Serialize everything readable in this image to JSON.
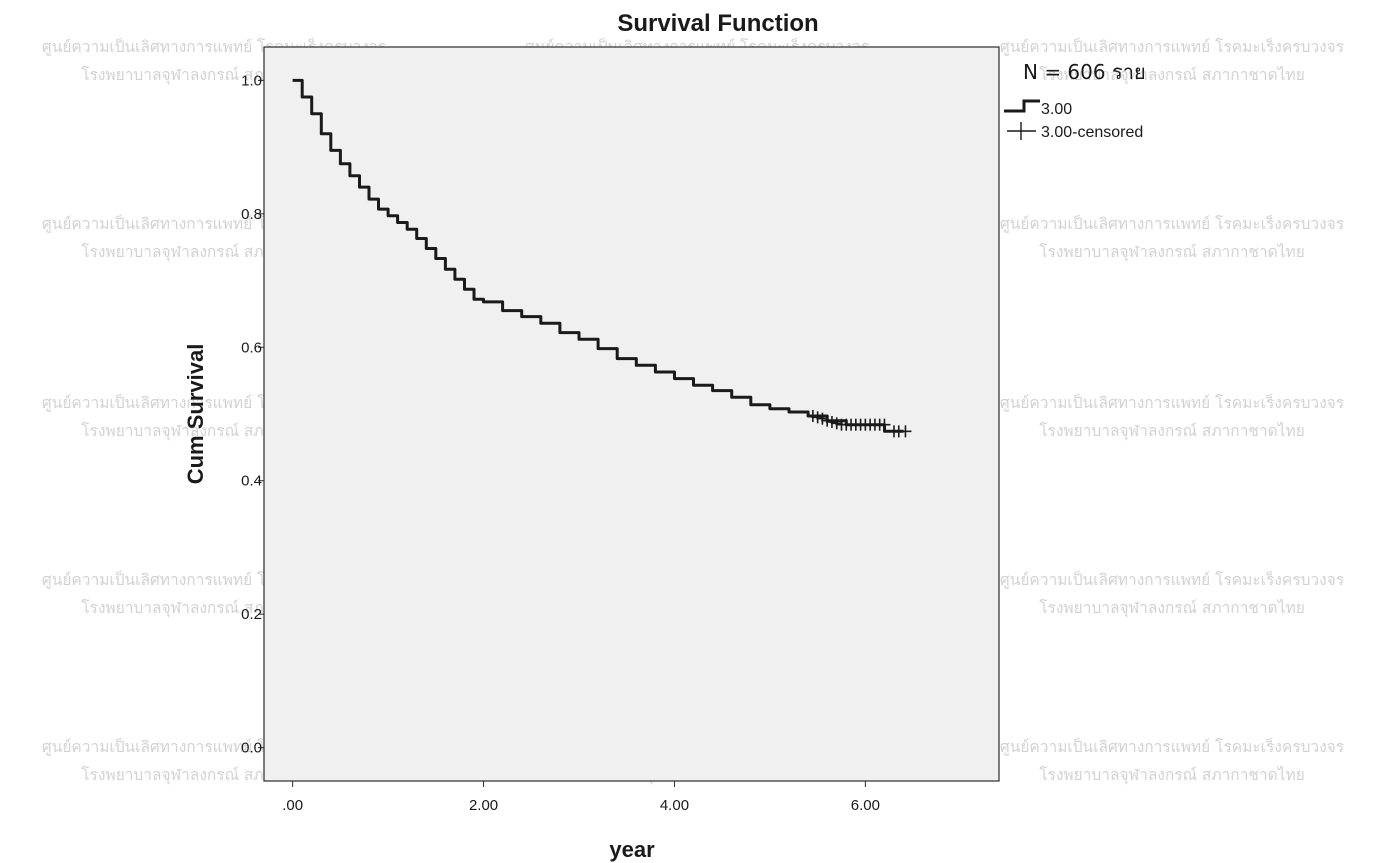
{
  "chart_data": {
    "type": "line",
    "title": "Survival Function",
    "xlabel": "year",
    "ylabel": "Cum Survival",
    "xlim": [
      -0.3,
      7.4
    ],
    "ylim": [
      -0.05,
      1.05
    ],
    "x_ticks": [
      0,
      2,
      4,
      6
    ],
    "x_tick_labels": [
      ".00",
      "2.00",
      "4.00",
      "6.00"
    ],
    "y_ticks": [
      0.0,
      0.2,
      0.4,
      0.6,
      0.8,
      1.0
    ],
    "y_tick_labels": [
      "0.0",
      "0.2",
      "0.4",
      "0.6",
      "0.8",
      "1.0"
    ],
    "grid": false,
    "legend_position": "right",
    "annotation": "N = 606 ราย",
    "series": [
      {
        "name": "3.00",
        "step": true,
        "x": [
          0.0,
          0.1,
          0.2,
          0.3,
          0.4,
          0.5,
          0.6,
          0.7,
          0.8,
          0.9,
          1.0,
          1.1,
          1.2,
          1.3,
          1.4,
          1.5,
          1.6,
          1.7,
          1.8,
          1.9,
          2.0,
          2.2,
          2.4,
          2.6,
          2.8,
          3.0,
          3.2,
          3.4,
          3.6,
          3.8,
          4.0,
          4.2,
          4.4,
          4.6,
          4.8,
          5.0,
          5.2,
          5.4,
          5.6,
          5.8,
          6.0,
          6.1,
          6.2,
          6.4
        ],
        "y": [
          1.0,
          0.975,
          0.95,
          0.92,
          0.895,
          0.875,
          0.857,
          0.84,
          0.822,
          0.807,
          0.797,
          0.787,
          0.777,
          0.763,
          0.748,
          0.733,
          0.717,
          0.702,
          0.687,
          0.672,
          0.668,
          0.655,
          0.646,
          0.636,
          0.622,
          0.612,
          0.598,
          0.583,
          0.573,
          0.563,
          0.553,
          0.543,
          0.535,
          0.525,
          0.514,
          0.508,
          0.503,
          0.497,
          0.49,
          0.484,
          0.484,
          0.484,
          0.474,
          0.474
        ]
      },
      {
        "name": "3.00-censored",
        "marker": "+",
        "x": [
          5.45,
          5.5,
          5.55,
          5.6,
          5.65,
          5.7,
          5.75,
          5.8,
          5.85,
          5.9,
          5.95,
          6.0,
          6.05,
          6.1,
          6.15,
          6.2,
          6.3,
          6.35,
          6.42
        ],
        "y": [
          0.497,
          0.495,
          0.493,
          0.49,
          0.488,
          0.486,
          0.484,
          0.484,
          0.484,
          0.484,
          0.484,
          0.484,
          0.484,
          0.484,
          0.484,
          0.484,
          0.474,
          0.474,
          0.474
        ]
      }
    ],
    "colors": {
      "plot_background": "#f0f0f0",
      "line": "#1a1a1a",
      "watermark": "#d2d2d2"
    }
  },
  "watermark": {
    "line1": "ศูนย์ความเป็นเลิศทางการแพทย์ โรคมะเร็งครบวงจร",
    "line2": "โรงพยาบาลจุฬาลงกรณ์ สภากาชาดไทย"
  }
}
